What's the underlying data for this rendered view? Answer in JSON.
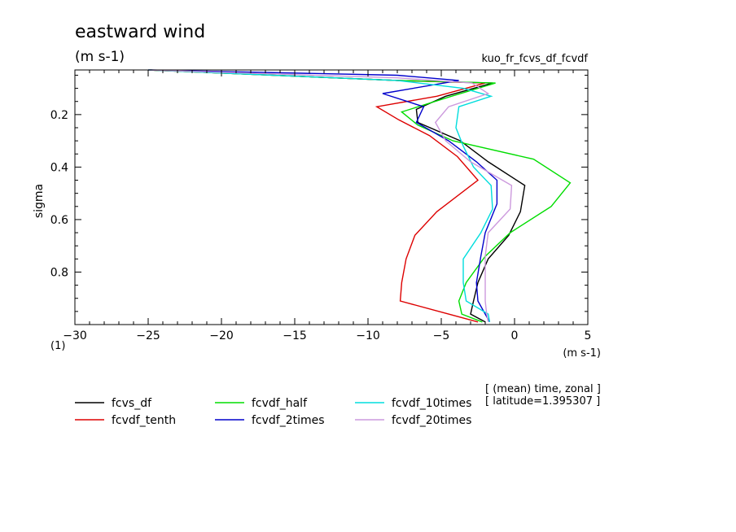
{
  "chart_data": {
    "type": "line",
    "title": "eastward wind",
    "units_label": "(m s-1)",
    "experiment": "kuo_fr_fcvs_df_fcvdf",
    "xlabel": "(m s-1)",
    "ylabel": "sigma",
    "corner_label": "(1)",
    "xlim": [
      -30,
      5
    ],
    "ylim": [
      0.03,
      1.0
    ],
    "y_inverted": true,
    "x_ticks": [
      -30,
      -25,
      -20,
      -15,
      -10,
      -5,
      0,
      5
    ],
    "x_tick_labels": [
      "−30",
      "−25",
      "−20",
      "−15",
      "−10",
      "−5",
      "0",
      "5"
    ],
    "y_ticks": [
      0.2,
      0.4,
      0.6,
      0.8
    ],
    "y_tick_labels": [
      "0.2",
      "0.4",
      "0.6",
      "0.8"
    ],
    "grid": false,
    "info_lines": [
      "[ (mean) time, zonal ]",
      "[ latitude=1.395307 ]"
    ],
    "series": [
      {
        "name": "fcvs_df",
        "color": "#000000",
        "x": [
          -25,
          -8,
          -1.5,
          -4.7,
          -6.7,
          -6.6,
          -3.7,
          -1.8,
          0.7,
          0.4,
          -0.4,
          -1.8,
          -2.5,
          -2.8,
          -3.0,
          -2.0
        ],
        "y": [
          0.03,
          0.07,
          0.08,
          0.13,
          0.18,
          0.23,
          0.3,
          0.38,
          0.47,
          0.57,
          0.66,
          0.75,
          0.84,
          0.91,
          0.96,
          0.99
        ]
      },
      {
        "name": "fcvdf_tenth",
        "color": "#dd0000",
        "x": [
          -25,
          -8,
          -2,
          -5.3,
          -9.4,
          -7.9,
          -5.8,
          -3.9,
          -2.5,
          -5.3,
          -6.8,
          -7.4,
          -7.7,
          -7.8,
          -4.5,
          -2.5
        ],
        "y": [
          0.03,
          0.07,
          0.08,
          0.13,
          0.17,
          0.22,
          0.28,
          0.36,
          0.45,
          0.57,
          0.66,
          0.75,
          0.84,
          0.91,
          0.96,
          0.99
        ]
      },
      {
        "name": "fcvdf_half",
        "color": "#00dd00",
        "x": [
          -25,
          -8,
          -1.3,
          -4.3,
          -7.7,
          -6.6,
          -4.2,
          1.3,
          3.8,
          2.5,
          -0.3,
          -2.0,
          -3.3,
          -3.8,
          -3.6,
          -2.2
        ],
        "y": [
          0.03,
          0.07,
          0.08,
          0.13,
          0.19,
          0.24,
          0.3,
          0.37,
          0.46,
          0.55,
          0.65,
          0.74,
          0.84,
          0.91,
          0.96,
          0.99
        ]
      },
      {
        "name": "fcvdf_2times",
        "color": "#0000cc",
        "x": [
          -25,
          -8,
          -3.8,
          -9.0,
          -6.2,
          -6.7,
          -4.5,
          -2.6,
          -1.2,
          -1.2,
          -2.0,
          -2.3,
          -2.6,
          -2.5,
          -2.0,
          -1.7
        ],
        "y": [
          0.03,
          0.05,
          0.07,
          0.12,
          0.17,
          0.23,
          0.3,
          0.38,
          0.45,
          0.54,
          0.65,
          0.74,
          0.84,
          0.91,
          0.96,
          0.99
        ]
      },
      {
        "name": "fcvdf_10times",
        "color": "#00dddd",
        "x": [
          -25,
          -8,
          -3.5,
          -1.6,
          -3.8,
          -4.0,
          -3.5,
          -2.8,
          -1.6,
          -1.5,
          -2.3,
          -3.5,
          -3.5,
          -3.3,
          -1.8,
          -1.7
        ],
        "y": [
          0.03,
          0.07,
          0.1,
          0.13,
          0.17,
          0.25,
          0.32,
          0.4,
          0.47,
          0.56,
          0.65,
          0.75,
          0.84,
          0.91,
          0.96,
          0.99
        ]
      },
      {
        "name": "fcvdf_20times",
        "color": "#cc99dd",
        "x": [
          -25,
          -8,
          -2.9,
          -1.8,
          -4.5,
          -5.4,
          -4.7,
          -3.0,
          -0.2,
          -0.3,
          -1.8,
          -2.0,
          -2.0,
          -2.0,
          -1.9,
          -1.8
        ],
        "y": [
          0.03,
          0.06,
          0.08,
          0.12,
          0.17,
          0.23,
          0.3,
          0.38,
          0.47,
          0.56,
          0.65,
          0.74,
          0.84,
          0.91,
          0.96,
          0.99
        ]
      }
    ]
  }
}
